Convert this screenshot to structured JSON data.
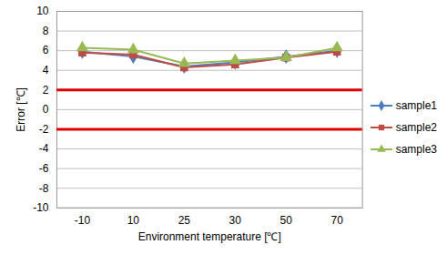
{
  "chart_data": {
    "type": "line",
    "x_label": "Environment temperature [℃]",
    "y_label": "Error [℃]",
    "categories": [
      "-10",
      "10",
      "25",
      "30",
      "50",
      "70"
    ],
    "series": [
      {
        "name": "sample1",
        "color": "#4a7ebb",
        "marker": "diamond",
        "values": [
          5.9,
          5.4,
          4.4,
          4.8,
          5.4,
          6.0
        ]
      },
      {
        "name": "sample2",
        "color": "#be4b48",
        "marker": "square",
        "values": [
          5.8,
          5.6,
          4.3,
          4.6,
          5.3,
          5.9
        ]
      },
      {
        "name": "sample3",
        "color": "#98b954",
        "marker": "triangle",
        "values": [
          6.3,
          6.1,
          4.7,
          5.0,
          5.3,
          6.3
        ]
      }
    ],
    "limits": {
      "values": [
        2,
        -2
      ],
      "color": "#e00000"
    },
    "ylim": [
      -10,
      10
    ],
    "yticks": [
      -10,
      -8,
      -6,
      -4,
      -2,
      0,
      2,
      4,
      6,
      8,
      10
    ],
    "grid": true,
    "legend": "right"
  }
}
